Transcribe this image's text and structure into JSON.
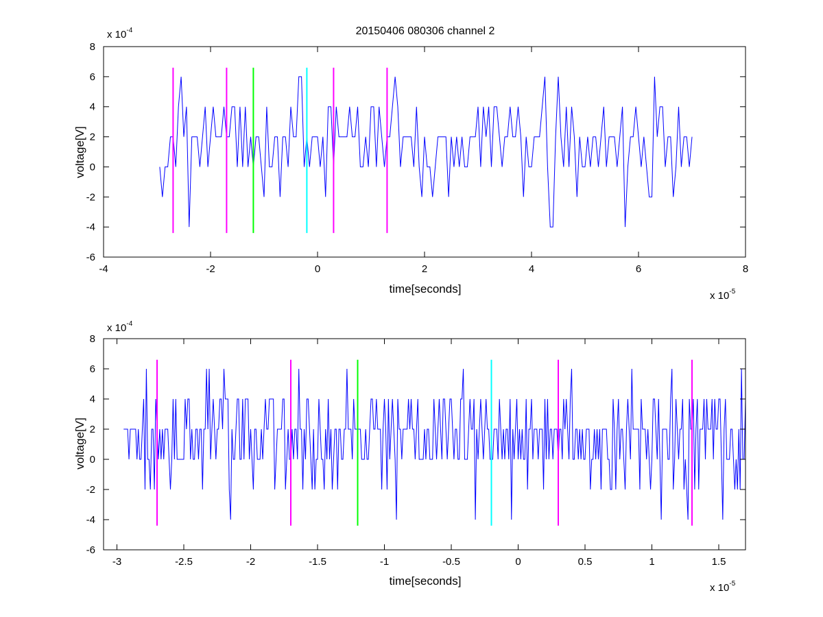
{
  "chart_data": [
    {
      "type": "line",
      "title": "20150406 080306 channel 2",
      "xlabel": "time[seconds]",
      "ylabel": "voltage[V]",
      "x_exponent_label": "x 10",
      "x_exponent_power": "-5",
      "y_exponent_label": "x 10",
      "y_exponent_power": "-4",
      "xlim": [
        -4,
        8
      ],
      "ylim": [
        -6,
        8
      ],
      "x_ticks": [
        -4,
        -2,
        0,
        2,
        4,
        6,
        8
      ],
      "x_tick_labels": [
        "-4",
        "-2",
        "0",
        "2",
        "4",
        "6",
        "8"
      ],
      "y_ticks": [
        -6,
        -4,
        -2,
        0,
        2,
        4,
        6,
        8
      ],
      "y_tick_labels": [
        "-6",
        "-4",
        "-2",
        "0",
        "2",
        "4",
        "6",
        "8"
      ],
      "grid": false,
      "signal": {
        "color": "#0000ff",
        "x_start": -2.95,
        "x_end": 7.0,
        "step": 0.05,
        "seed": 20150406
      },
      "markers": [
        {
          "x": -2.7,
          "y_range": [
            -4.4,
            6.6
          ],
          "color": "#ff00ff"
        },
        {
          "x": -1.7,
          "y_range": [
            -4.4,
            6.6
          ],
          "color": "#ff00ff"
        },
        {
          "x": -1.2,
          "y_range": [
            -4.4,
            6.6
          ],
          "color": "#00ff00"
        },
        {
          "x": -0.2,
          "y_range": [
            -4.4,
            6.6
          ],
          "color": "#00ffff"
        },
        {
          "x": 0.3,
          "y_range": [
            -4.4,
            6.6
          ],
          "color": "#ff00ff"
        },
        {
          "x": 1.3,
          "y_range": [
            -4.4,
            6.6
          ],
          "color": "#ff00ff"
        }
      ]
    },
    {
      "type": "line",
      "title": "",
      "xlabel": "time[seconds]",
      "ylabel": "voltage[V]",
      "x_exponent_label": "x 10",
      "x_exponent_power": "-5",
      "y_exponent_label": "x 10",
      "y_exponent_power": "-4",
      "xlim": [
        -3.1,
        1.7
      ],
      "ylim": [
        -6,
        8
      ],
      "x_ticks": [
        -3,
        -2.5,
        -2,
        -1.5,
        -1,
        -0.5,
        0,
        0.5,
        1,
        1.5
      ],
      "x_tick_labels": [
        "-3",
        "-2.5",
        "-2",
        "-1.5",
        "-1",
        "-0.5",
        "0",
        "0.5",
        "1",
        "1.5"
      ],
      "y_ticks": [
        -6,
        -4,
        -2,
        0,
        2,
        4,
        6,
        8
      ],
      "y_tick_labels": [
        "-6",
        "-4",
        "-2",
        "0",
        "2",
        "4",
        "6",
        "8"
      ],
      "grid": false,
      "signal": {
        "color": "#0000ff",
        "x_start": -2.95,
        "x_end": 1.7,
        "step": 0.01,
        "seed": 80306
      },
      "markers": [
        {
          "x": -2.7,
          "y_range": [
            -4.4,
            6.6
          ],
          "color": "#ff00ff"
        },
        {
          "x": -1.7,
          "y_range": [
            -4.4,
            6.6
          ],
          "color": "#ff00ff"
        },
        {
          "x": -1.2,
          "y_range": [
            -4.4,
            6.6
          ],
          "color": "#00ff00"
        },
        {
          "x": -0.2,
          "y_range": [
            -4.4,
            6.6
          ],
          "color": "#00ffff"
        },
        {
          "x": 0.3,
          "y_range": [
            -4.4,
            6.6
          ],
          "color": "#ff00ff"
        },
        {
          "x": 1.3,
          "y_range": [
            -4.4,
            6.6
          ],
          "color": "#ff00ff"
        }
      ]
    }
  ]
}
